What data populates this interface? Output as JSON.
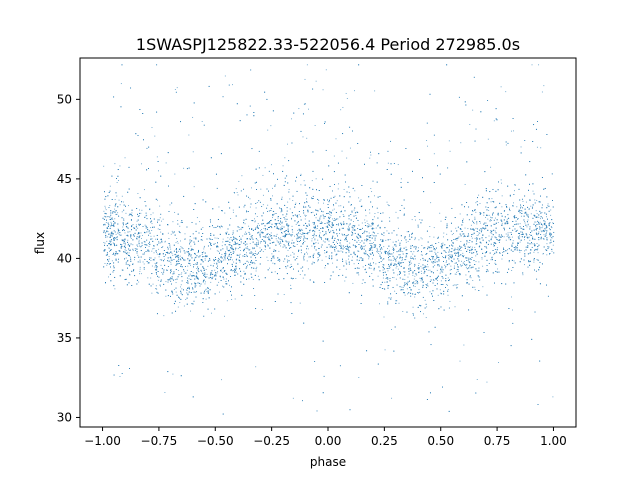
{
  "chart_data": {
    "type": "scatter",
    "title": "1SWASPJ125822.33-522056.4 Period 272985.0s",
    "xlabel": "phase",
    "ylabel": "flux",
    "xlim": [
      -1.1,
      1.1
    ],
    "ylim": [
      29.4,
      52.6
    ],
    "xticks": [
      -1.0,
      -0.75,
      -0.5,
      -0.25,
      0.0,
      0.25,
      0.5,
      0.75,
      1.0
    ],
    "xtick_labels": [
      "−1.00",
      "−0.75",
      "−0.50",
      "−0.25",
      "0.00",
      "0.25",
      "0.50",
      "0.75",
      "1.00"
    ],
    "yticks": [
      30,
      35,
      40,
      45,
      50
    ],
    "ytick_labels": [
      "30",
      "35",
      "40",
      "45",
      "50"
    ],
    "grid": false,
    "marker_color": "#1f77b4",
    "series": [
      {
        "description": "dense light-curve band, flux vs phase (mirrored over -1..1)",
        "x_range": [
          -1.0,
          1.0
        ],
        "band_center": [
          [
            -1.0,
            41.5
          ],
          [
            -0.9,
            41.3
          ],
          [
            -0.8,
            40.8
          ],
          [
            -0.7,
            40.0
          ],
          [
            -0.6,
            39.3
          ],
          [
            -0.5,
            39.6
          ],
          [
            -0.4,
            40.5
          ],
          [
            -0.3,
            41.5
          ],
          [
            -0.2,
            41.7
          ],
          [
            -0.1,
            41.6
          ],
          [
            0.0,
            41.5
          ],
          [
            0.1,
            41.3
          ],
          [
            0.2,
            40.8
          ],
          [
            0.3,
            40.0
          ],
          [
            0.4,
            39.3
          ],
          [
            0.5,
            39.6
          ],
          [
            0.6,
            40.5
          ],
          [
            0.7,
            41.5
          ],
          [
            0.8,
            41.7
          ],
          [
            0.9,
            41.6
          ],
          [
            1.0,
            41.5
          ]
        ],
        "flux_range": [
          30.2,
          52.2
        ]
      }
    ]
  }
}
